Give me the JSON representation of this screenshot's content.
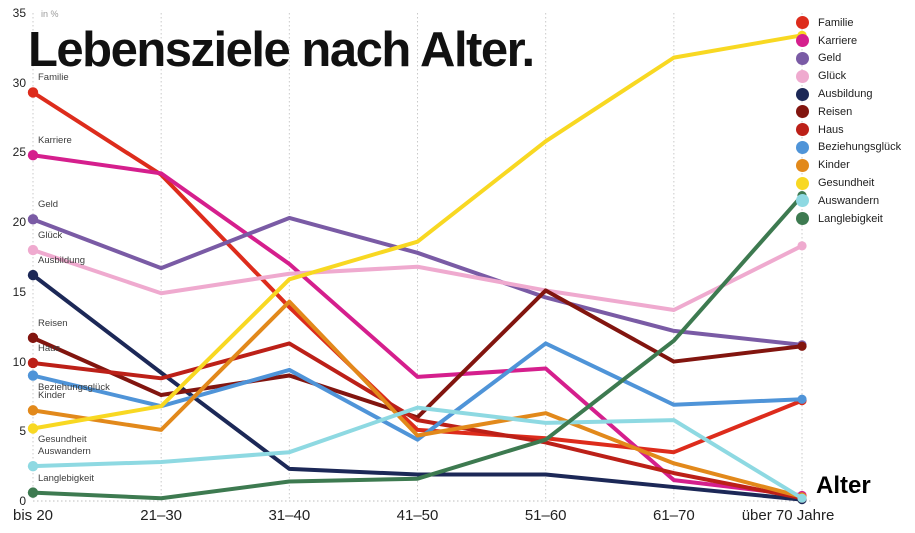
{
  "title": "Lebensziele nach Alter.",
  "y_axis": {
    "unit_label": "in %",
    "ticks": [
      0,
      5,
      10,
      15,
      20,
      25,
      30,
      35
    ]
  },
  "x_axis": {
    "label": "Alter"
  },
  "chart_data": {
    "type": "line",
    "title": "Lebensziele nach Alter.",
    "ylabel": "in %",
    "xlabel": "Alter",
    "ylim": [
      0,
      35
    ],
    "grid": "vertical dotted gridlines + dotted baseline",
    "legend_position": "top-right",
    "categories": [
      "bis 20",
      "21–30",
      "31–40",
      "41–50",
      "51–60",
      "61–70",
      "über 70 Jahre"
    ],
    "series": [
      {
        "name": "Familie",
        "color": "#dd2c1c",
        "label_side": "above",
        "values": [
          29.3,
          23.4,
          13.9,
          5.1,
          4.5,
          3.5,
          7.2
        ]
      },
      {
        "name": "Karriere",
        "color": "#d51f8d",
        "label_side": "above",
        "values": [
          24.8,
          23.5,
          17.0,
          8.9,
          9.5,
          1.5,
          0.4
        ]
      },
      {
        "name": "Geld",
        "color": "#7a5ba5",
        "label_side": "above",
        "values": [
          20.2,
          16.7,
          20.3,
          17.8,
          14.6,
          12.2,
          11.2
        ]
      },
      {
        "name": "Glück",
        "color": "#efaacf",
        "label_side": "above",
        "values": [
          18.0,
          14.9,
          16.3,
          16.8,
          15.1,
          13.7,
          18.3
        ]
      },
      {
        "name": "Ausbildung",
        "color": "#1c2857",
        "label_side": "above",
        "values": [
          16.2,
          9.2,
          2.3,
          1.9,
          1.9,
          1.0,
          0.1
        ]
      },
      {
        "name": "Reisen",
        "color": "#82150f",
        "label_side": "above",
        "values": [
          11.7,
          7.6,
          9.0,
          6.0,
          15.1,
          10.0,
          11.1
        ]
      },
      {
        "name": "Haus",
        "color": "#bc2018",
        "label_side": "above",
        "values": [
          9.9,
          8.8,
          11.3,
          5.8,
          4.2,
          2.0,
          0.2
        ]
      },
      {
        "name": "Beziehungsglück",
        "color": "#4f94d8",
        "label_side": "below",
        "values": [
          9.0,
          6.8,
          9.4,
          4.4,
          11.3,
          6.9,
          7.3
        ]
      },
      {
        "name": "Kinder",
        "color": "#e2891b",
        "label_side": "above",
        "values": [
          6.5,
          5.1,
          14.3,
          4.7,
          6.3,
          2.7,
          0.3
        ]
      },
      {
        "name": "Gesundheit",
        "color": "#f8d822",
        "label_side": "below",
        "values": [
          5.2,
          6.8,
          15.9,
          18.6,
          25.8,
          31.8,
          33.4
        ]
      },
      {
        "name": "Auswandern",
        "color": "#8ed9e2",
        "label_side": "above",
        "values": [
          2.5,
          2.8,
          3.5,
          6.7,
          5.6,
          5.8,
          0.2
        ]
      },
      {
        "name": "Langlebigkeit",
        "color": "#3d7a50",
        "label_side": "above",
        "values": [
          0.6,
          0.2,
          1.4,
          1.6,
          4.4,
          11.5,
          21.9
        ]
      }
    ]
  }
}
